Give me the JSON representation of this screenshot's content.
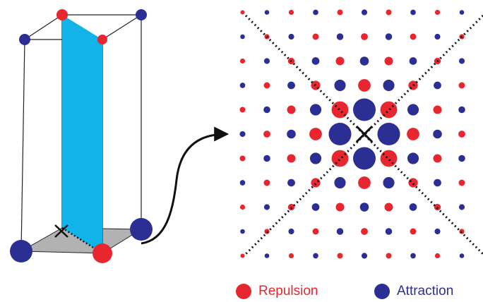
{
  "colors": {
    "repulsion": "#e8262f",
    "attraction": "#2b2f93",
    "plane": "#12b3e8",
    "base": "#b2b2b2",
    "edge": "#1a1a1a"
  },
  "legend": [
    {
      "label": "Repulsion",
      "color": "#e8262f"
    },
    {
      "label": "Attraction",
      "color": "#2b2f93"
    }
  ]
}
